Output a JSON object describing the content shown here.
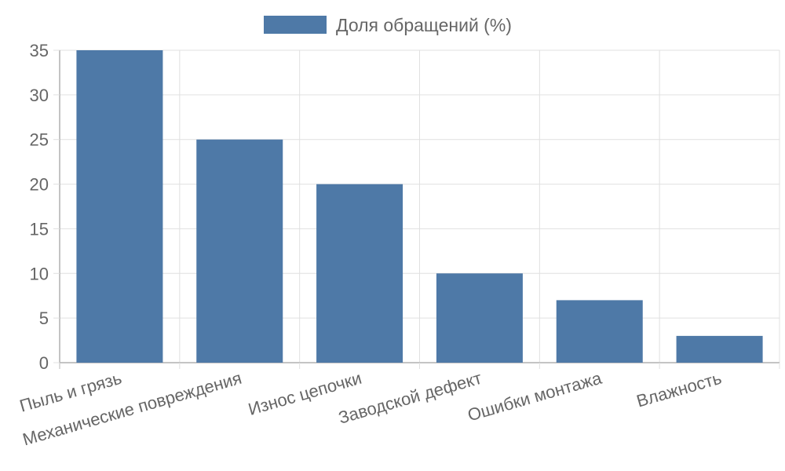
{
  "chart_data": {
    "type": "bar",
    "categories": [
      "Пыль и грязь",
      "Механические повреждения",
      "Износ цепочки",
      "Заводской дефект",
      "Ошибки монтажа",
      "Влажность"
    ],
    "series": [
      {
        "name": "Доля обращений (%)",
        "values": [
          35,
          25,
          20,
          10,
          7,
          3
        ],
        "color": "#4e79a7"
      }
    ],
    "yticks": [
      "0",
      "5",
      "10",
      "15",
      "20",
      "25",
      "30",
      "35"
    ],
    "ylim": [
      0,
      35
    ],
    "grid": true,
    "legend_position": "top-center",
    "xlabel": "",
    "ylabel": "",
    "title": ""
  }
}
